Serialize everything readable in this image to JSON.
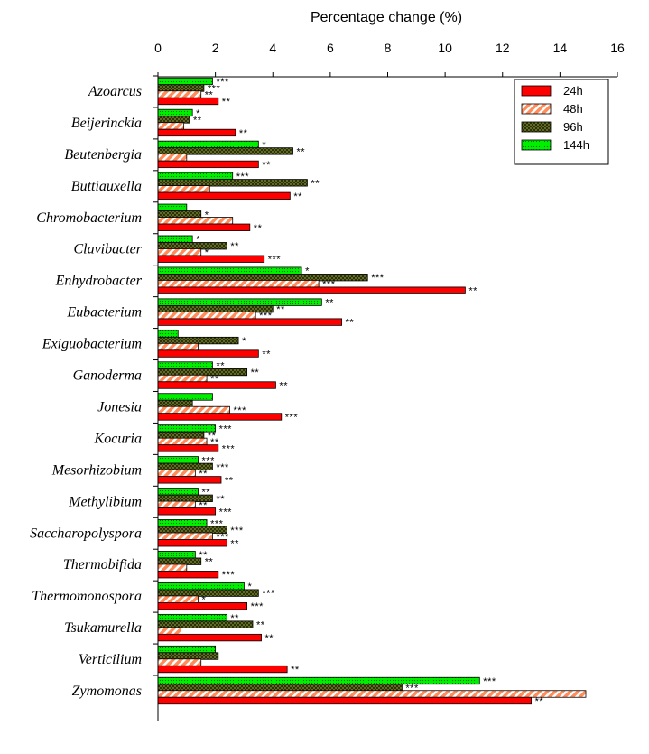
{
  "chart_data": {
    "type": "bar",
    "orientation": "horizontal",
    "title": "Percentage change (%)",
    "xlim": [
      0,
      16
    ],
    "x_ticks": [
      "0",
      "2",
      "4",
      "6",
      "8",
      "10",
      "12",
      "14",
      "16"
    ],
    "grid": false,
    "legend_position": "top-right",
    "categories": [
      "Azoarcus",
      "Beijerinckia",
      "Beutenbergia",
      "Buttiauxella",
      "Chromobacterium",
      "Clavibacter",
      "Enhydrobacter",
      "Eubacterium",
      "Exiguobacterium",
      "Ganoderma",
      "Jonesia",
      "Kocuria",
      "Mesorhizobium",
      "Methylibium",
      "Saccharopolyspora",
      "Thermobifida",
      "Thermomonospora",
      "Tsukamurella",
      "Verticilium",
      "Zymomonas"
    ],
    "series": [
      {
        "name": "144h",
        "color": "#00ee00",
        "pattern": "dots",
        "values": [
          1.9,
          1.2,
          3.5,
          2.6,
          1.0,
          1.2,
          5.0,
          5.7,
          0.7,
          1.9,
          1.9,
          2.0,
          1.4,
          1.4,
          1.7,
          1.3,
          3.0,
          2.4,
          2.0,
          11.2
        ],
        "significance": [
          "***",
          "*",
          "*",
          "***",
          "",
          "*",
          "*",
          "**",
          "",
          "**",
          "",
          "***",
          "***",
          "**",
          "***",
          "**",
          "*",
          "**",
          "",
          "***"
        ]
      },
      {
        "name": "96h",
        "color": "#556b2f",
        "pattern": "crosshatch",
        "values": [
          1.6,
          1.1,
          4.7,
          5.2,
          1.5,
          2.4,
          7.3,
          4.0,
          2.8,
          3.1,
          1.2,
          1.6,
          1.9,
          1.9,
          2.4,
          1.5,
          3.5,
          3.3,
          2.1,
          8.5
        ],
        "significance": [
          "***",
          "**",
          "**",
          "**",
          "*",
          "**",
          "***",
          "**",
          "*",
          "**",
          "",
          "**",
          "***",
          "**",
          "***",
          "**",
          "***",
          "**",
          "",
          "***"
        ]
      },
      {
        "name": "48h",
        "color": "#ff7f50",
        "pattern": "hatch",
        "values": [
          1.5,
          0.9,
          1.0,
          1.8,
          2.6,
          1.5,
          5.6,
          3.4,
          1.4,
          1.7,
          2.5,
          1.7,
          1.3,
          1.3,
          1.9,
          1.0,
          1.4,
          0.8,
          1.5,
          14.9
        ],
        "significance": [
          "**",
          "",
          "",
          "",
          "",
          "*",
          "***",
          "***",
          "",
          "**",
          "***",
          "**",
          "**",
          "**",
          "***",
          "",
          "*",
          "",
          "",
          ""
        ]
      },
      {
        "name": "24h",
        "color": "#ff0000",
        "pattern": "solid",
        "values": [
          2.1,
          2.7,
          3.5,
          4.6,
          3.2,
          3.7,
          10.7,
          6.4,
          3.5,
          4.1,
          4.3,
          2.1,
          2.2,
          2.0,
          2.4,
          2.1,
          3.1,
          3.6,
          4.5,
          13.0
        ],
        "significance": [
          "**",
          "**",
          "**",
          "**",
          "**",
          "***",
          "**",
          "**",
          "**",
          "**",
          "***",
          "***",
          "**",
          "***",
          "**",
          "***",
          "***",
          "**",
          "**",
          "**"
        ]
      }
    ]
  }
}
